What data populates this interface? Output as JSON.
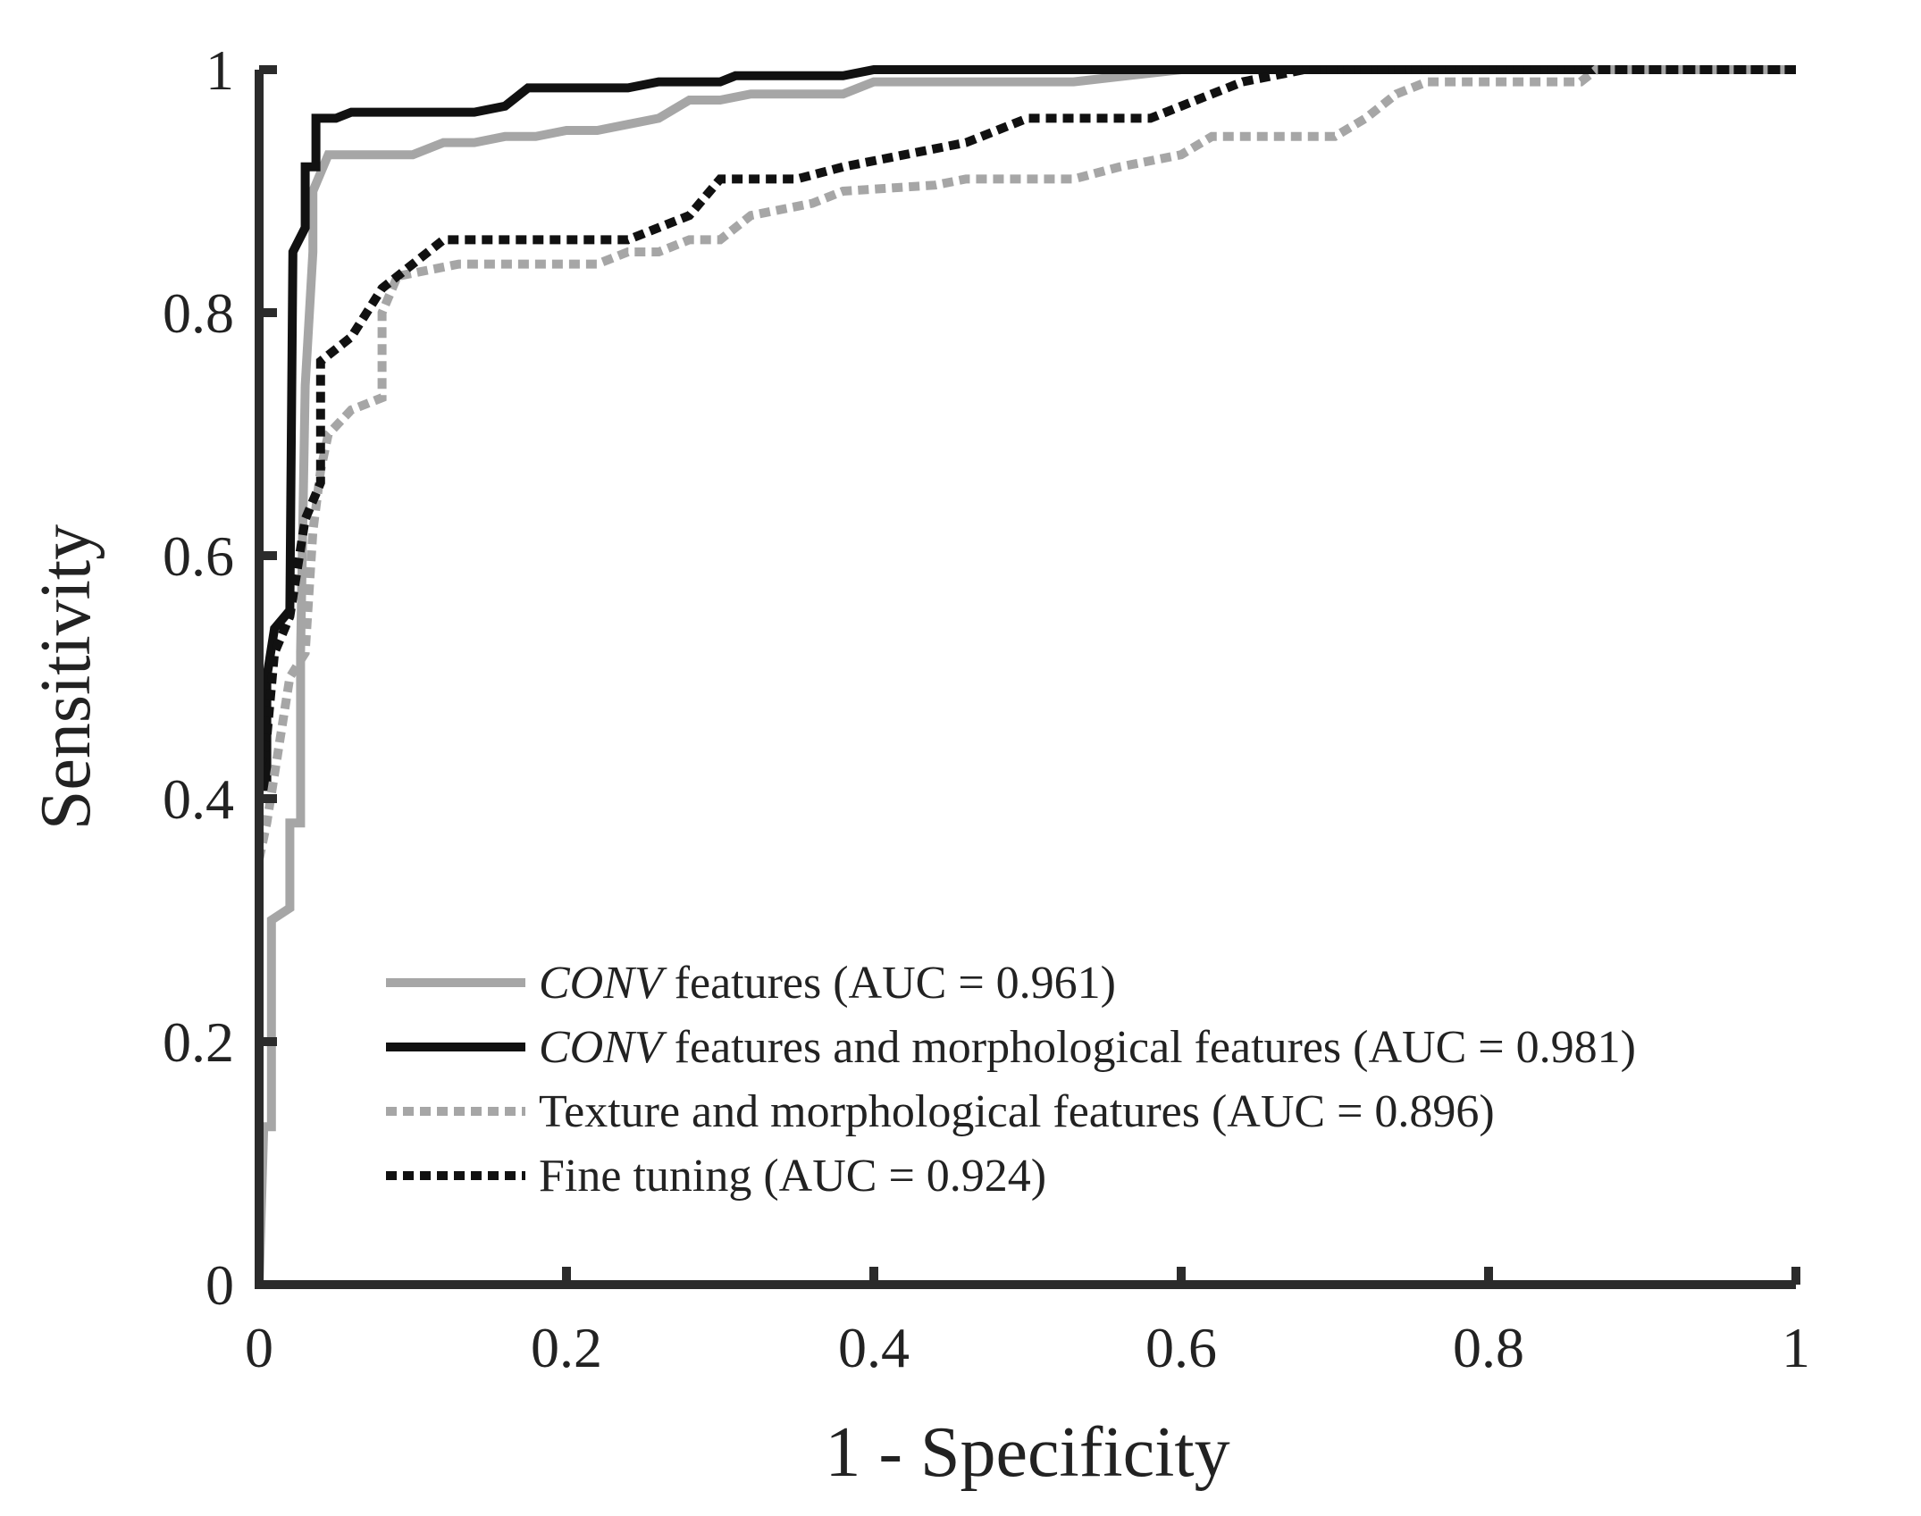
{
  "chart_data": {
    "type": "line",
    "title": "",
    "xlabel": "1 - Specificity",
    "ylabel": "Sensitivity",
    "xlim": [
      0,
      1
    ],
    "ylim": [
      0,
      1
    ],
    "grid": false,
    "legend_position": "lower-right",
    "x_ticks": [
      0,
      0.2,
      0.4,
      0.6,
      0.8,
      1
    ],
    "y_ticks": [
      0,
      0.2,
      0.4,
      0.6,
      0.8,
      1
    ],
    "x_tick_labels": [
      "0",
      "0.2",
      "0.4",
      "0.6",
      "0.8",
      "1"
    ],
    "y_tick_labels": [
      "0",
      "0.2",
      "0.4",
      "0.6",
      "0.8",
      "1"
    ],
    "series": [
      {
        "name": "CONV features (AUC = 0.961)",
        "name_italic": "CONV",
        "name_rest": " features (AUC = 0.961)",
        "color": "#a6a6a6",
        "style": "solid",
        "points": [
          [
            0,
            0
          ],
          [
            0.003,
            0.13
          ],
          [
            0.008,
            0.13
          ],
          [
            0.008,
            0.3
          ],
          [
            0.02,
            0.31
          ],
          [
            0.02,
            0.38
          ],
          [
            0.027,
            0.38
          ],
          [
            0.027,
            0.52
          ],
          [
            0.03,
            0.74
          ],
          [
            0.035,
            0.85
          ],
          [
            0.035,
            0.9
          ],
          [
            0.045,
            0.93
          ],
          [
            0.1,
            0.93
          ],
          [
            0.12,
            0.94
          ],
          [
            0.14,
            0.94
          ],
          [
            0.16,
            0.945
          ],
          [
            0.18,
            0.945
          ],
          [
            0.2,
            0.95
          ],
          [
            0.22,
            0.95
          ],
          [
            0.24,
            0.955
          ],
          [
            0.26,
            0.96
          ],
          [
            0.28,
            0.975
          ],
          [
            0.3,
            0.975
          ],
          [
            0.32,
            0.98
          ],
          [
            0.38,
            0.98
          ],
          [
            0.4,
            0.99
          ],
          [
            0.53,
            0.99
          ],
          [
            0.6,
            1.0
          ],
          [
            1.0,
            1.0
          ]
        ]
      },
      {
        "name": "CONV features and morphological features (AUC = 0.981)",
        "name_italic": "CONV",
        "name_rest": " features and morphological features (AUC = 0.981)",
        "color": "#111111",
        "style": "solid",
        "points": [
          [
            0,
            0
          ],
          [
            0,
            0.41
          ],
          [
            0.005,
            0.41
          ],
          [
            0.005,
            0.5
          ],
          [
            0.01,
            0.54
          ],
          [
            0.02,
            0.555
          ],
          [
            0.022,
            0.85
          ],
          [
            0.03,
            0.87
          ],
          [
            0.03,
            0.92
          ],
          [
            0.037,
            0.92
          ],
          [
            0.037,
            0.96
          ],
          [
            0.05,
            0.96
          ],
          [
            0.06,
            0.965
          ],
          [
            0.14,
            0.965
          ],
          [
            0.16,
            0.97
          ],
          [
            0.175,
            0.985
          ],
          [
            0.24,
            0.985
          ],
          [
            0.26,
            0.99
          ],
          [
            0.3,
            0.99
          ],
          [
            0.31,
            0.995
          ],
          [
            0.38,
            0.995
          ],
          [
            0.4,
            1.0
          ],
          [
            1.0,
            1.0
          ]
        ]
      },
      {
        "name": "Texture and morphological features (AUC = 0.896)",
        "name_italic": "",
        "name_rest": "Texture and morphological features (AUC = 0.896)",
        "color": "#a6a6a6",
        "style": "dotted",
        "points": [
          [
            0,
            0.35
          ],
          [
            0.005,
            0.38
          ],
          [
            0.01,
            0.42
          ],
          [
            0.02,
            0.5
          ],
          [
            0.03,
            0.52
          ],
          [
            0.035,
            0.62
          ],
          [
            0.04,
            0.67
          ],
          [
            0.045,
            0.7
          ],
          [
            0.06,
            0.72
          ],
          [
            0.07,
            0.725
          ],
          [
            0.08,
            0.73
          ],
          [
            0.08,
            0.8
          ],
          [
            0.09,
            0.83
          ],
          [
            0.13,
            0.84
          ],
          [
            0.22,
            0.84
          ],
          [
            0.24,
            0.85
          ],
          [
            0.26,
            0.85
          ],
          [
            0.28,
            0.86
          ],
          [
            0.3,
            0.86
          ],
          [
            0.32,
            0.88
          ],
          [
            0.36,
            0.89
          ],
          [
            0.38,
            0.9
          ],
          [
            0.44,
            0.905
          ],
          [
            0.46,
            0.91
          ],
          [
            0.53,
            0.91
          ],
          [
            0.56,
            0.92
          ],
          [
            0.6,
            0.93
          ],
          [
            0.62,
            0.945
          ],
          [
            0.7,
            0.945
          ],
          [
            0.72,
            0.96
          ],
          [
            0.74,
            0.98
          ],
          [
            0.76,
            0.99
          ],
          [
            0.86,
            0.99
          ],
          [
            0.87,
            1.0
          ],
          [
            1.0,
            1.0
          ]
        ]
      },
      {
        "name": "Fine tuning (AUC = 0.924)",
        "name_italic": "",
        "name_rest": "Fine tuning (AUC = 0.924)",
        "color": "#111111",
        "style": "dotted",
        "points": [
          [
            0,
            0.3
          ],
          [
            0,
            0.42
          ],
          [
            0.005,
            0.45
          ],
          [
            0.01,
            0.52
          ],
          [
            0.02,
            0.55
          ],
          [
            0.025,
            0.59
          ],
          [
            0.03,
            0.63
          ],
          [
            0.04,
            0.66
          ],
          [
            0.04,
            0.76
          ],
          [
            0.05,
            0.77
          ],
          [
            0.06,
            0.78
          ],
          [
            0.07,
            0.8
          ],
          [
            0.08,
            0.82
          ],
          [
            0.1,
            0.84
          ],
          [
            0.11,
            0.85
          ],
          [
            0.12,
            0.86
          ],
          [
            0.24,
            0.86
          ],
          [
            0.26,
            0.87
          ],
          [
            0.28,
            0.88
          ],
          [
            0.3,
            0.91
          ],
          [
            0.35,
            0.91
          ],
          [
            0.38,
            0.92
          ],
          [
            0.42,
            0.93
          ],
          [
            0.46,
            0.94
          ],
          [
            0.48,
            0.95
          ],
          [
            0.5,
            0.96
          ],
          [
            0.58,
            0.96
          ],
          [
            0.6,
            0.97
          ],
          [
            0.64,
            0.99
          ],
          [
            0.68,
            1.0
          ],
          [
            1.0,
            1.0
          ]
        ]
      }
    ]
  }
}
